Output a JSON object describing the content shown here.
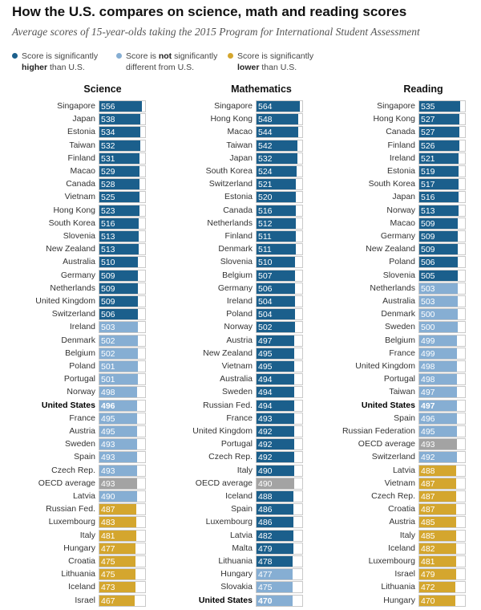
{
  "title": "How the U.S. compares on science, math and reading scores",
  "subtitle": "Average scores of 15-year-olds taking the 2015 Program for International Student Assessment",
  "legend": [
    {
      "key": "higher",
      "line1": "Score is significantly",
      "line2_bold": "higher",
      "line2_rest": " than U.S.",
      "color": "#1b5f8c"
    },
    {
      "key": "same",
      "line1_pre": "Score is ",
      "line1_bold": "not",
      "line1_post": " significantly",
      "line2": "different from U.S.",
      "color": "#86aed3"
    },
    {
      "key": "lower",
      "line1": "Score is significantly",
      "line2_bold": "lower",
      "line2_rest": " than U.S.",
      "color": "#d4a62e"
    }
  ],
  "colors": {
    "higher": "#1b5f8c",
    "same": "#86aed3",
    "lower": "#d4a62e",
    "oecd": "#a3a3a3"
  },
  "chart_data": {
    "type": "bar",
    "orientation": "horizontal",
    "xlim": [
      0,
      600
    ],
    "panels": [
      {
        "title": "Science",
        "rows": [
          {
            "country": "Singapore",
            "score": 556,
            "cat": "higher"
          },
          {
            "country": "Japan",
            "score": 538,
            "cat": "higher"
          },
          {
            "country": "Estonia",
            "score": 534,
            "cat": "higher"
          },
          {
            "country": "Taiwan",
            "score": 532,
            "cat": "higher"
          },
          {
            "country": "Finland",
            "score": 531,
            "cat": "higher"
          },
          {
            "country": "Macao",
            "score": 529,
            "cat": "higher"
          },
          {
            "country": "Canada",
            "score": 528,
            "cat": "higher"
          },
          {
            "country": "Vietnam",
            "score": 525,
            "cat": "higher"
          },
          {
            "country": "Hong Kong",
            "score": 523,
            "cat": "higher"
          },
          {
            "country": "South Korea",
            "score": 516,
            "cat": "higher"
          },
          {
            "country": "Slovenia",
            "score": 513,
            "cat": "higher"
          },
          {
            "country": "New Zealand",
            "score": 513,
            "cat": "higher"
          },
          {
            "country": "Australia",
            "score": 510,
            "cat": "higher"
          },
          {
            "country": "Germany",
            "score": 509,
            "cat": "higher"
          },
          {
            "country": "Netherlands",
            "score": 509,
            "cat": "higher"
          },
          {
            "country": "United Kingdom",
            "score": 509,
            "cat": "higher"
          },
          {
            "country": "Switzerland",
            "score": 506,
            "cat": "higher"
          },
          {
            "country": "Ireland",
            "score": 503,
            "cat": "same"
          },
          {
            "country": "Denmark",
            "score": 502,
            "cat": "same"
          },
          {
            "country": "Belgium",
            "score": 502,
            "cat": "same"
          },
          {
            "country": "Poland",
            "score": 501,
            "cat": "same"
          },
          {
            "country": "Portugal",
            "score": 501,
            "cat": "same"
          },
          {
            "country": "Norway",
            "score": 498,
            "cat": "same"
          },
          {
            "country": "United States",
            "score": 496,
            "cat": "same",
            "us": true
          },
          {
            "country": "France",
            "score": 495,
            "cat": "same"
          },
          {
            "country": "Austria",
            "score": 495,
            "cat": "same"
          },
          {
            "country": "Sweden",
            "score": 493,
            "cat": "same"
          },
          {
            "country": "Spain",
            "score": 493,
            "cat": "same"
          },
          {
            "country": "Czech Rep.",
            "score": 493,
            "cat": "same"
          },
          {
            "country": "OECD average",
            "score": 493,
            "cat": "oecd"
          },
          {
            "country": "Latvia",
            "score": 490,
            "cat": "same"
          },
          {
            "country": "Russian Fed.",
            "score": 487,
            "cat": "lower"
          },
          {
            "country": "Luxembourg",
            "score": 483,
            "cat": "lower"
          },
          {
            "country": "Italy",
            "score": 481,
            "cat": "lower"
          },
          {
            "country": "Hungary",
            "score": 477,
            "cat": "lower"
          },
          {
            "country": "Croatia",
            "score": 475,
            "cat": "lower"
          },
          {
            "country": "Lithuania",
            "score": 475,
            "cat": "lower"
          },
          {
            "country": "Iceland",
            "score": 473,
            "cat": "lower"
          },
          {
            "country": "Israel",
            "score": 467,
            "cat": "lower"
          }
        ]
      },
      {
        "title": "Mathematics",
        "rows": [
          {
            "country": "Singapore",
            "score": 564,
            "cat": "higher"
          },
          {
            "country": "Hong Kong",
            "score": 548,
            "cat": "higher"
          },
          {
            "country": "Macao",
            "score": 544,
            "cat": "higher"
          },
          {
            "country": "Taiwan",
            "score": 542,
            "cat": "higher"
          },
          {
            "country": "Japan",
            "score": 532,
            "cat": "higher"
          },
          {
            "country": "South Korea",
            "score": 524,
            "cat": "higher"
          },
          {
            "country": "Switzerland",
            "score": 521,
            "cat": "higher"
          },
          {
            "country": "Estonia",
            "score": 520,
            "cat": "higher"
          },
          {
            "country": "Canada",
            "score": 516,
            "cat": "higher"
          },
          {
            "country": "Netherlands",
            "score": 512,
            "cat": "higher"
          },
          {
            "country": "Finland",
            "score": 511,
            "cat": "higher"
          },
          {
            "country": "Denmark",
            "score": 511,
            "cat": "higher"
          },
          {
            "country": "Slovenia",
            "score": 510,
            "cat": "higher"
          },
          {
            "country": "Belgium",
            "score": 507,
            "cat": "higher"
          },
          {
            "country": "Germany",
            "score": 506,
            "cat": "higher"
          },
          {
            "country": "Ireland",
            "score": 504,
            "cat": "higher"
          },
          {
            "country": "Poland",
            "score": 504,
            "cat": "higher"
          },
          {
            "country": "Norway",
            "score": 502,
            "cat": "higher"
          },
          {
            "country": "Austria",
            "score": 497,
            "cat": "higher"
          },
          {
            "country": "New Zealand",
            "score": 495,
            "cat": "higher"
          },
          {
            "country": "Vietnam",
            "score": 495,
            "cat": "higher"
          },
          {
            "country": "Australia",
            "score": 494,
            "cat": "higher"
          },
          {
            "country": "Sweden",
            "score": 494,
            "cat": "higher"
          },
          {
            "country": "Russian Fed.",
            "score": 494,
            "cat": "higher"
          },
          {
            "country": "France",
            "score": 493,
            "cat": "higher"
          },
          {
            "country": "United Kingdom",
            "score": 492,
            "cat": "higher"
          },
          {
            "country": "Portugal",
            "score": 492,
            "cat": "higher"
          },
          {
            "country": "Czech Rep.",
            "score": 492,
            "cat": "higher"
          },
          {
            "country": "Italy",
            "score": 490,
            "cat": "higher"
          },
          {
            "country": "OECD average",
            "score": 490,
            "cat": "oecd"
          },
          {
            "country": "Iceland",
            "score": 488,
            "cat": "higher"
          },
          {
            "country": "Spain",
            "score": 486,
            "cat": "higher"
          },
          {
            "country": "Luxembourg",
            "score": 486,
            "cat": "higher"
          },
          {
            "country": "Latvia",
            "score": 482,
            "cat": "higher"
          },
          {
            "country": "Malta",
            "score": 479,
            "cat": "higher"
          },
          {
            "country": "Lithuania",
            "score": 478,
            "cat": "higher"
          },
          {
            "country": "Hungary",
            "score": 477,
            "cat": "same"
          },
          {
            "country": "Slovakia",
            "score": 475,
            "cat": "same"
          },
          {
            "country": "United States",
            "score": 470,
            "cat": "same",
            "us": true
          }
        ]
      },
      {
        "title": "Reading",
        "rows": [
          {
            "country": "Singapore",
            "score": 535,
            "cat": "higher"
          },
          {
            "country": "Hong Kong",
            "score": 527,
            "cat": "higher"
          },
          {
            "country": "Canada",
            "score": 527,
            "cat": "higher"
          },
          {
            "country": "Finland",
            "score": 526,
            "cat": "higher"
          },
          {
            "country": "Ireland",
            "score": 521,
            "cat": "higher"
          },
          {
            "country": "Estonia",
            "score": 519,
            "cat": "higher"
          },
          {
            "country": "South Korea",
            "score": 517,
            "cat": "higher"
          },
          {
            "country": "Japan",
            "score": 516,
            "cat": "higher"
          },
          {
            "country": "Norway",
            "score": 513,
            "cat": "higher"
          },
          {
            "country": "Macao",
            "score": 509,
            "cat": "higher"
          },
          {
            "country": "Germany",
            "score": 509,
            "cat": "higher"
          },
          {
            "country": "New Zealand",
            "score": 509,
            "cat": "higher"
          },
          {
            "country": "Poland",
            "score": 506,
            "cat": "higher"
          },
          {
            "country": "Slovenia",
            "score": 505,
            "cat": "higher"
          },
          {
            "country": "Netherlands",
            "score": 503,
            "cat": "same"
          },
          {
            "country": "Australia",
            "score": 503,
            "cat": "same"
          },
          {
            "country": "Denmark",
            "score": 500,
            "cat": "same"
          },
          {
            "country": "Sweden",
            "score": 500,
            "cat": "same"
          },
          {
            "country": "Belgium",
            "score": 499,
            "cat": "same"
          },
          {
            "country": "France",
            "score": 499,
            "cat": "same"
          },
          {
            "country": "United Kingdom",
            "score": 498,
            "cat": "same"
          },
          {
            "country": "Portugal",
            "score": 498,
            "cat": "same"
          },
          {
            "country": "Taiwan",
            "score": 497,
            "cat": "same"
          },
          {
            "country": "United States",
            "score": 497,
            "cat": "same",
            "us": true
          },
          {
            "country": "Spain",
            "score": 496,
            "cat": "same"
          },
          {
            "country": "Russian Federation",
            "score": 495,
            "cat": "same"
          },
          {
            "country": "OECD average",
            "score": 493,
            "cat": "oecd"
          },
          {
            "country": "Switzerland",
            "score": 492,
            "cat": "same"
          },
          {
            "country": "Latvia",
            "score": 488,
            "cat": "lower"
          },
          {
            "country": "Vietnam",
            "score": 487,
            "cat": "lower"
          },
          {
            "country": "Czech Rep.",
            "score": 487,
            "cat": "lower"
          },
          {
            "country": "Croatia",
            "score": 487,
            "cat": "lower"
          },
          {
            "country": "Austria",
            "score": 485,
            "cat": "lower"
          },
          {
            "country": "Italy",
            "score": 485,
            "cat": "lower"
          },
          {
            "country": "Iceland",
            "score": 482,
            "cat": "lower"
          },
          {
            "country": "Luxembourg",
            "score": 481,
            "cat": "lower"
          },
          {
            "country": "Israel",
            "score": 479,
            "cat": "lower"
          },
          {
            "country": "Lithuania",
            "score": 472,
            "cat": "lower"
          },
          {
            "country": "Hungary",
            "score": 470,
            "cat": "lower"
          }
        ]
      }
    ]
  }
}
